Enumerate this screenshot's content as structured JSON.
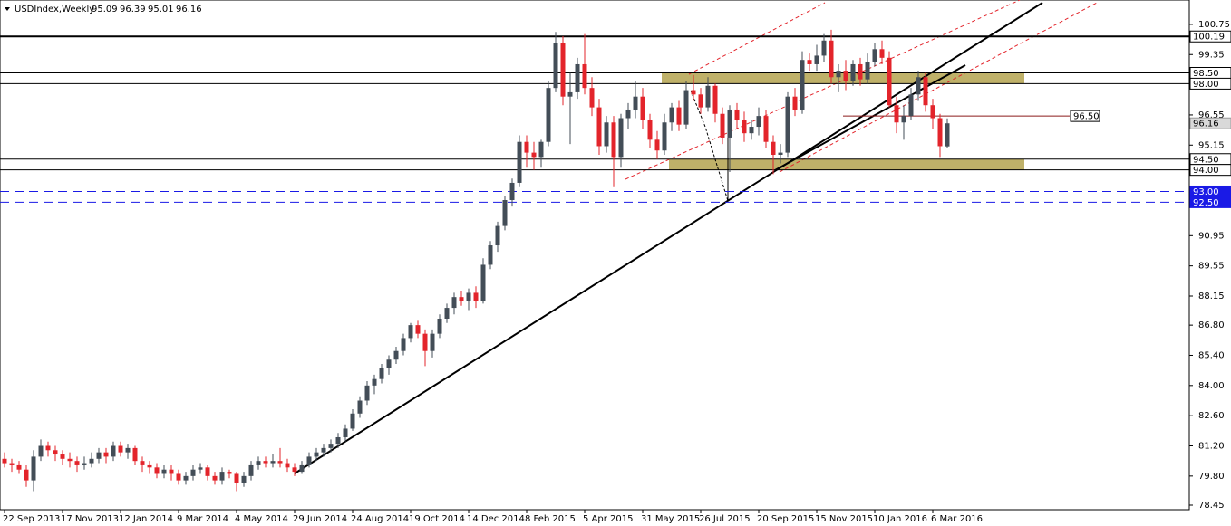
{
  "chart_data": {
    "type": "candlestick",
    "symbol": "USDIndex,Weekly",
    "bull_color": "#434d57",
    "bear_color": "#e3242b",
    "candles": [
      [
        80.6,
        80.9,
        80.2,
        80.4
      ],
      [
        80.4,
        80.6,
        80.0,
        80.3
      ],
      [
        80.3,
        80.5,
        79.9,
        80.1
      ],
      [
        80.1,
        80.3,
        79.3,
        79.6
      ],
      [
        79.6,
        81.0,
        79.1,
        80.7
      ],
      [
        80.7,
        81.5,
        80.5,
        81.2
      ],
      [
        81.2,
        81.4,
        80.7,
        81.0
      ],
      [
        81.0,
        81.2,
        80.5,
        80.8
      ],
      [
        80.8,
        81.0,
        80.3,
        80.6
      ],
      [
        80.6,
        80.9,
        80.2,
        80.5
      ],
      [
        80.5,
        80.7,
        80.0,
        80.3
      ],
      [
        80.3,
        80.7,
        80.1,
        80.4
      ],
      [
        80.4,
        80.9,
        80.2,
        80.6
      ],
      [
        80.6,
        81.1,
        80.4,
        80.9
      ],
      [
        80.9,
        81.1,
        80.4,
        80.7
      ],
      [
        80.7,
        81.4,
        80.5,
        81.2
      ],
      [
        81.2,
        81.4,
        80.7,
        80.9
      ],
      [
        80.9,
        81.3,
        80.6,
        81.1
      ],
      [
        81.1,
        81.2,
        80.3,
        80.5
      ],
      [
        80.5,
        80.7,
        80.0,
        80.3
      ],
      [
        80.3,
        80.5,
        79.9,
        80.2
      ],
      [
        80.2,
        80.4,
        79.7,
        79.9
      ],
      [
        79.9,
        80.3,
        79.7,
        80.1
      ],
      [
        80.1,
        80.3,
        79.6,
        79.9
      ],
      [
        79.9,
        80.1,
        79.4,
        79.6
      ],
      [
        79.6,
        80.0,
        79.4,
        79.8
      ],
      [
        79.8,
        80.3,
        79.6,
        80.1
      ],
      [
        80.1,
        80.4,
        79.9,
        80.2
      ],
      [
        80.2,
        80.3,
        79.6,
        79.8
      ],
      [
        79.8,
        80.0,
        79.4,
        79.6
      ],
      [
        79.6,
        80.2,
        79.4,
        80.0
      ],
      [
        80.0,
        80.1,
        79.7,
        79.9
      ],
      [
        79.9,
        80.0,
        79.1,
        79.5
      ],
      [
        79.5,
        80.0,
        79.3,
        79.8
      ],
      [
        79.8,
        80.5,
        79.6,
        80.3
      ],
      [
        80.3,
        80.7,
        80.1,
        80.5
      ],
      [
        80.5,
        80.7,
        80.2,
        80.4
      ],
      [
        80.4,
        80.8,
        80.2,
        80.5
      ],
      [
        80.5,
        81.1,
        80.2,
        80.4
      ],
      [
        80.4,
        80.6,
        80.0,
        80.2
      ],
      [
        80.2,
        80.4,
        79.8,
        80.0
      ],
      [
        80.0,
        80.5,
        79.9,
        80.3
      ],
      [
        80.3,
        80.9,
        80.2,
        80.7
      ],
      [
        80.7,
        81.1,
        80.5,
        80.9
      ],
      [
        80.9,
        81.3,
        80.7,
        81.1
      ],
      [
        81.1,
        81.5,
        80.9,
        81.3
      ],
      [
        81.3,
        81.8,
        81.1,
        81.6
      ],
      [
        81.6,
        82.2,
        81.4,
        82.0
      ],
      [
        82.0,
        82.9,
        81.9,
        82.7
      ],
      [
        82.7,
        83.5,
        82.5,
        83.3
      ],
      [
        83.3,
        84.2,
        83.1,
        84.0
      ],
      [
        84.0,
        84.5,
        83.6,
        84.3
      ],
      [
        84.3,
        85.0,
        84.1,
        84.8
      ],
      [
        84.8,
        85.4,
        84.5,
        85.2
      ],
      [
        85.2,
        85.8,
        85.0,
        85.6
      ],
      [
        85.6,
        86.4,
        85.4,
        86.2
      ],
      [
        86.2,
        86.9,
        86.0,
        86.8
      ],
      [
        86.8,
        87.0,
        86.2,
        86.4
      ],
      [
        86.4,
        86.6,
        84.9,
        85.6
      ],
      [
        85.6,
        86.6,
        85.3,
        86.4
      ],
      [
        86.4,
        87.3,
        86.2,
        87.1
      ],
      [
        87.1,
        87.8,
        86.9,
        87.6
      ],
      [
        87.6,
        88.3,
        87.3,
        88.1
      ],
      [
        88.1,
        88.4,
        87.7,
        87.9
      ],
      [
        87.9,
        88.5,
        87.5,
        88.3
      ],
      [
        88.3,
        88.6,
        87.6,
        87.9
      ],
      [
        87.9,
        89.9,
        87.8,
        89.6
      ],
      [
        89.6,
        90.7,
        89.4,
        90.5
      ],
      [
        90.5,
        91.6,
        90.2,
        91.4
      ],
      [
        91.4,
        92.8,
        91.2,
        92.6
      ],
      [
        92.6,
        93.6,
        92.3,
        93.4
      ],
      [
        93.4,
        95.6,
        93.2,
        95.3
      ],
      [
        95.3,
        95.6,
        94.1,
        94.8
      ],
      [
        94.8,
        95.3,
        94.0,
        94.6
      ],
      [
        94.6,
        95.4,
        94.1,
        95.3
      ],
      [
        95.3,
        98.1,
        95.1,
        97.8
      ],
      [
        97.8,
        100.4,
        97.6,
        99.9
      ],
      [
        99.9,
        100.2,
        97.0,
        97.4
      ],
      [
        97.4,
        98.5,
        95.2,
        97.6
      ],
      [
        97.6,
        99.2,
        97.3,
        98.9
      ],
      [
        98.9,
        100.3,
        97.5,
        97.8
      ],
      [
        97.8,
        98.3,
        96.5,
        96.9
      ],
      [
        96.9,
        97.3,
        94.7,
        95.1
      ],
      [
        95.1,
        96.5,
        94.8,
        96.2
      ],
      [
        96.2,
        96.5,
        93.2,
        94.6
      ],
      [
        94.6,
        96.6,
        94.1,
        96.4
      ],
      [
        96.4,
        97.1,
        95.9,
        96.8
      ],
      [
        96.8,
        98.1,
        96.4,
        97.4
      ],
      [
        97.4,
        97.8,
        95.9,
        96.3
      ],
      [
        96.3,
        96.6,
        95.0,
        95.4
      ],
      [
        95.4,
        95.8,
        94.5,
        94.9
      ],
      [
        94.9,
        96.6,
        94.7,
        96.2
      ],
      [
        96.2,
        97.1,
        95.8,
        96.9
      ],
      [
        96.9,
        97.2,
        95.8,
        96.1
      ],
      [
        96.1,
        98.1,
        95.9,
        97.7
      ],
      [
        97.7,
        98.4,
        97.2,
        97.5
      ],
      [
        97.5,
        97.8,
        96.6,
        96.9
      ],
      [
        96.9,
        98.3,
        96.7,
        97.9
      ],
      [
        97.9,
        98.0,
        96.2,
        96.6
      ],
      [
        96.6,
        96.9,
        95.2,
        95.5
      ],
      [
        95.5,
        97.0,
        93.9,
        96.8
      ],
      [
        96.8,
        97.1,
        95.9,
        96.3
      ],
      [
        96.3,
        96.7,
        95.3,
        95.7
      ],
      [
        95.7,
        96.3,
        95.4,
        96.0
      ],
      [
        96.0,
        96.9,
        95.6,
        96.5
      ],
      [
        96.5,
        96.8,
        95.0,
        95.3
      ],
      [
        95.3,
        95.6,
        93.8,
        94.7
      ],
      [
        94.7,
        95.2,
        94.3,
        94.8
      ],
      [
        94.8,
        97.6,
        94.6,
        97.4
      ],
      [
        97.4,
        97.8,
        96.5,
        96.8
      ],
      [
        96.8,
        99.5,
        96.6,
        99.1
      ],
      [
        99.1,
        99.4,
        98.6,
        98.9
      ],
      [
        98.9,
        99.8,
        98.6,
        99.3
      ],
      [
        99.3,
        100.3,
        99.0,
        100.0
      ],
      [
        100.0,
        100.5,
        98.0,
        98.3
      ],
      [
        98.3,
        98.9,
        97.6,
        98.6
      ],
      [
        98.6,
        99.1,
        97.7,
        98.1
      ],
      [
        98.1,
        99.1,
        97.9,
        98.9
      ],
      [
        98.9,
        99.2,
        97.9,
        98.2
      ],
      [
        98.2,
        99.4,
        98.0,
        99.0
      ],
      [
        99.0,
        99.9,
        98.8,
        99.6
      ],
      [
        99.6,
        100.0,
        98.9,
        99.2
      ],
      [
        99.2,
        99.5,
        96.9,
        97.0
      ],
      [
        97.0,
        97.4,
        95.7,
        96.2
      ],
      [
        96.2,
        97.0,
        95.4,
        96.5
      ],
      [
        96.5,
        97.8,
        96.3,
        97.5
      ],
      [
        97.5,
        98.6,
        97.2,
        98.3
      ],
      [
        98.3,
        98.5,
        96.7,
        97.0
      ],
      [
        97.0,
        97.3,
        95.9,
        96.4
      ],
      [
        96.4,
        96.6,
        94.6,
        95.1
      ],
      [
        95.09,
        96.39,
        95.01,
        96.16
      ]
    ],
    "x_labels": [
      "22 Sep 2013",
      "17 Nov 2013",
      "12 Jan 2014",
      "9 Mar 2014",
      "4 May 2014",
      "29 Jun 2014",
      "24 Aug 2014",
      "19 Oct 2014",
      "14 Dec 2014",
      "8 Feb 2015",
      "5 Apr 2015",
      "31 May 2015",
      "26 Jul 2015",
      "20 Sep 2015",
      "15 Nov 2015",
      "10 Jan 2016",
      "6 Mar 2016"
    ],
    "ylim": [
      78.24,
      101.88
    ],
    "yticks": [
      100.75,
      99.35,
      96.55,
      95.15,
      90.95,
      89.55,
      88.15,
      {
        "value": 86.8,
        "label": "86.80"
      },
      {
        "value": 85.4,
        "label": "85.40"
      },
      {
        "value": 84,
        "label": "84.00"
      },
      {
        "value": 82.6,
        "label": "82.60"
      },
      {
        "value": 81.2,
        "label": "81.20"
      },
      {
        "value": 79.8,
        "label": "79.80"
      },
      78.45
    ],
    "levels": [
      {
        "value": 100.19,
        "color": "#000000"
      },
      {
        "value": 98.5,
        "label": "98.50",
        "color": "#000000"
      },
      {
        "value": 98,
        "label": "98.00",
        "color": "#000000"
      },
      {
        "value": 94.5,
        "label": "94.50",
        "color": "#000000"
      },
      {
        "value": 94,
        "label": "94.00",
        "color": "#000000"
      },
      {
        "value": 93,
        "label": "93.00",
        "color": "#1a1ae6"
      },
      {
        "value": 92.5,
        "label": "92.50",
        "color": "#1a1ae6"
      },
      {
        "value": 96.5,
        "label": "96.50",
        "color": "#8b1a1a"
      }
    ],
    "zone_color": "#bfb169"
  }
}
